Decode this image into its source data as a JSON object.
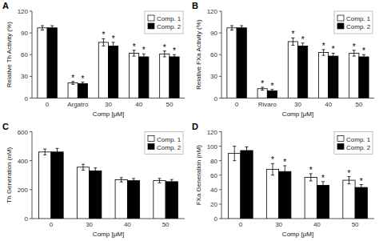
{
  "chart_data": [
    {
      "type": "bar",
      "title": "A",
      "ylabel": "Relative Th Activity (%)",
      "xlabel": "Comp [μM]",
      "categories": [
        "0",
        "Argatro",
        "30",
        "40",
        "50"
      ],
      "series": [
        {
          "name": "Comp. 1",
          "color": "white",
          "values": [
            97,
            21,
            77,
            62,
            61
          ],
          "errors": [
            3,
            2,
            5,
            4,
            4
          ],
          "annotations": [
            null,
            "*",
            "*",
            "*",
            "*"
          ]
        },
        {
          "name": "Comp. 2",
          "color": "black",
          "values": [
            97,
            20,
            72,
            57,
            57
          ],
          "errors": [
            3,
            2,
            5,
            4,
            3
          ],
          "annotations": [
            null,
            "*",
            "*",
            "*",
            "*"
          ]
        }
      ],
      "ylim": [
        0,
        120
      ],
      "yticks": [
        0,
        30,
        60,
        90,
        120
      ],
      "legend": "upper right"
    },
    {
      "type": "bar",
      "title": "B",
      "ylabel": "Relative FXa Activity (%)",
      "xlabel": "Comp [μM]",
      "categories": [
        "0",
        "Rivaro",
        "30",
        "40",
        "50"
      ],
      "series": [
        {
          "name": "Comp. 1",
          "color": "white",
          "values": [
            97,
            13,
            78,
            63,
            62
          ],
          "errors": [
            3,
            2,
            5,
            4,
            4
          ],
          "annotations": [
            null,
            "*",
            "*",
            "*",
            "*"
          ]
        },
        {
          "name": "Comp. 2",
          "color": "black",
          "values": [
            97,
            10,
            72,
            58,
            57
          ],
          "errors": [
            3,
            2,
            4,
            4,
            3
          ],
          "annotations": [
            null,
            "*",
            "*",
            "*",
            "*"
          ]
        }
      ],
      "ylim": [
        0,
        120
      ],
      "yticks": [
        0,
        30,
        60,
        90,
        120
      ],
      "legend": "upper right"
    },
    {
      "type": "bar",
      "title": "C",
      "ylabel": "Th Generation (nM)",
      "xlabel": "Comp [μM]",
      "categories": [
        "0",
        "30",
        "40",
        "50"
      ],
      "series": [
        {
          "name": "Comp. 1",
          "color": "white",
          "values": [
            460,
            355,
            268,
            262
          ],
          "errors": [
            20,
            20,
            15,
            15
          ],
          "annotations": [
            null,
            null,
            null,
            null
          ]
        },
        {
          "name": "Comp. 2",
          "color": "black",
          "values": [
            460,
            330,
            262,
            255
          ],
          "errors": [
            25,
            20,
            15,
            15
          ],
          "annotations": [
            null,
            null,
            null,
            null
          ]
        }
      ],
      "ylim": [
        0,
        600
      ],
      "yticks": [
        0,
        200,
        400,
        600
      ],
      "legend": "upper right"
    },
    {
      "type": "bar",
      "title": "D",
      "ylabel": "FXa Generation (nM)",
      "xlabel": "Comp [μM]",
      "categories": [
        "0",
        "30",
        "40",
        "50"
      ],
      "series": [
        {
          "name": "Comp. 1",
          "color": "white",
          "values": [
            90,
            68,
            57,
            53
          ],
          "errors": [
            10,
            8,
            5,
            5
          ],
          "annotations": [
            null,
            "*",
            "*",
            "*"
          ]
        },
        {
          "name": "Comp. 2",
          "color": "black",
          "values": [
            94,
            65,
            46,
            43
          ],
          "errors": [
            5,
            8,
            5,
            4
          ],
          "annotations": [
            null,
            "*",
            "*",
            "*"
          ]
        }
      ],
      "ylim": [
        0,
        120
      ],
      "yticks": [
        0,
        20,
        40,
        60,
        80,
        100,
        120
      ],
      "legend": "upper right"
    }
  ]
}
